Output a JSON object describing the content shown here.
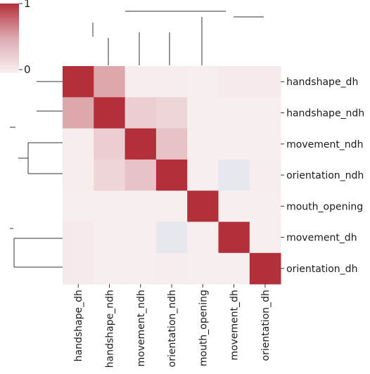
{
  "chart_data": {
    "type": "heatmap",
    "variant": "clustermap",
    "rows": [
      "handshape_dh",
      "handshape_ndh",
      "movement_ndh",
      "orientation_ndh",
      "mouth_opening",
      "movement_dh",
      "orientation_dh"
    ],
    "columns": [
      "handshape_dh",
      "handshape_ndh",
      "movement_ndh",
      "orientation_ndh",
      "mouth_opening",
      "movement_dh",
      "orientation_dh"
    ],
    "values": [
      [
        1.0,
        0.38,
        0.02,
        0.02,
        0.01,
        0.03,
        0.03
      ],
      [
        0.38,
        1.0,
        0.18,
        0.14,
        0.01,
        0.01,
        0.01
      ],
      [
        0.02,
        0.18,
        1.0,
        0.24,
        0.01,
        0.01,
        0.01
      ],
      [
        0.02,
        0.14,
        0.24,
        1.0,
        0.01,
        -0.06,
        0.02
      ],
      [
        0.01,
        0.01,
        0.01,
        0.01,
        1.0,
        0.01,
        0.01
      ],
      [
        0.03,
        0.01,
        0.01,
        -0.06,
        0.01,
        1.0,
        0.01
      ],
      [
        0.03,
        0.01,
        0.01,
        0.02,
        0.01,
        0.01,
        1.0
      ]
    ],
    "colorbar": {
      "ticks": [
        "1",
        "0"
      ],
      "min": 0,
      "max": 1
    },
    "colors": {
      "high": "#b3303a",
      "zero": "#f8f0f2",
      "negative": "#e6e8ee"
    },
    "legend_placement": "top-left"
  }
}
